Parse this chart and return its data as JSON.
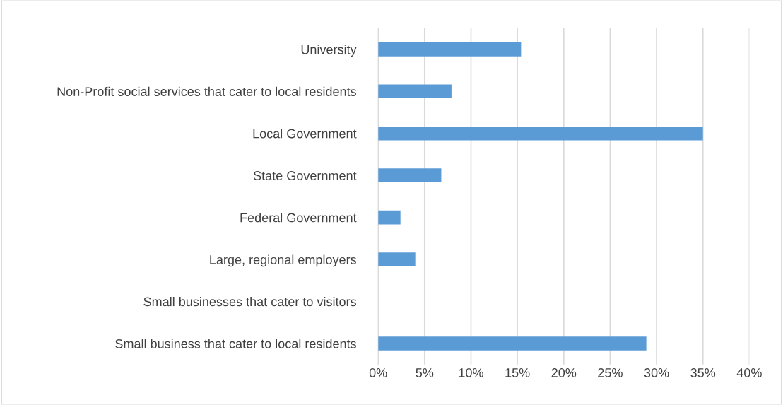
{
  "chart_data": {
    "type": "bar",
    "orientation": "horizontal",
    "categories": [
      "University",
      "Non-Profit social services that cater to local residents",
      "Local Government",
      "State Government",
      "Federal Government",
      "Large, regional employers",
      "Small businesses that cater to visitors",
      "Small business that cater to local residents"
    ],
    "values": [
      15.4,
      7.9,
      35.0,
      6.8,
      2.4,
      4.0,
      0,
      28.9
    ],
    "color": "#5b9bd5",
    "xlim": [
      0,
      40
    ],
    "xticks": [
      {
        "value": 0,
        "label": "0%"
      },
      {
        "value": 5,
        "label": "5%"
      },
      {
        "value": 10,
        "label": "10%"
      },
      {
        "value": 15,
        "label": "15%"
      },
      {
        "value": 20,
        "label": "20%"
      },
      {
        "value": 25,
        "label": "25%"
      },
      {
        "value": 30,
        "label": "30%"
      },
      {
        "value": 35,
        "label": "35%"
      },
      {
        "value": 40,
        "label": "40%"
      }
    ],
    "grid": "x"
  }
}
